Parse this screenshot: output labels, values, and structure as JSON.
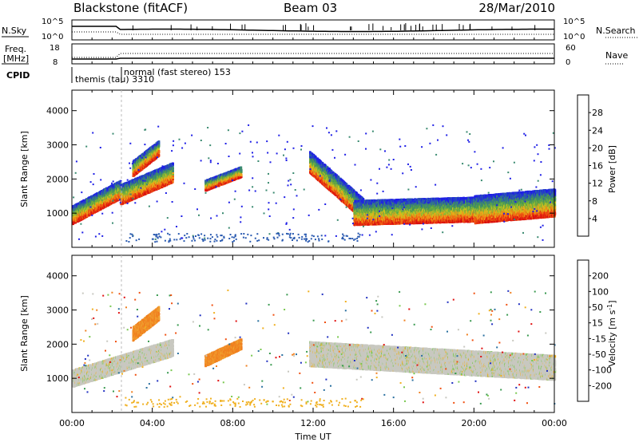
{
  "header": {
    "station": "Blackstone (fitACF)",
    "beam": "Beam 03",
    "date": "28/Mar/2010"
  },
  "status": {
    "nsky_label": "N.Sky",
    "nsearch_label": "N.Search",
    "nsky_ticks": [
      "10^5",
      "10^0"
    ],
    "nsearch_ticks": [
      "10^5",
      "10^0"
    ],
    "freq_label_1": "Freq.",
    "freq_label_2": "[MHz]",
    "freq_ticks": [
      "18",
      "8"
    ],
    "nave_label": "Nave",
    "nave_ticks": [
      "60",
      "0"
    ],
    "cpid_label": "CPID",
    "cpid_entries": [
      {
        "time": 0.1,
        "text": "themis (tau) 3310"
      },
      {
        "time": 2.4,
        "text": "normal (fast stereo) 153"
      }
    ]
  },
  "x_axis": {
    "label": "Time UT",
    "range_hours": [
      0,
      24
    ],
    "tick_labels": [
      "00:00",
      "04:00",
      "08:00",
      "12:00",
      "16:00",
      "20:00",
      "00:00"
    ],
    "tick_hours": [
      0,
      4,
      8,
      12,
      16,
      20,
      24
    ]
  },
  "chart_data": [
    {
      "type": "heatmap",
      "panel": "power",
      "ylabel": "Slant Range [km]",
      "ylim": [
        0,
        4600
      ],
      "y_ticks": [
        1000,
        2000,
        3000,
        4000
      ],
      "colorbar": {
        "label": "Power [dB]",
        "range": [
          0,
          32
        ],
        "ticks": [
          "4",
          "8",
          "12",
          "16",
          "20",
          "24",
          "28"
        ],
        "colors": [
          "#1f1fe6",
          "#2a5ab0",
          "#3a8a70",
          "#4f9a4a",
          "#74b43c",
          "#c8c51e",
          "#f0a21a",
          "#f06a12",
          "#e82a10",
          "#d81010"
        ]
      },
      "features": [
        {
          "t0": 0.0,
          "t1": 2.4,
          "r_start": 950,
          "r_end": 1700,
          "thick": 550
        },
        {
          "t0": 2.4,
          "t1": 5.0,
          "r_start": 1550,
          "r_end": 2200,
          "thick": 600
        },
        {
          "t0": 3.0,
          "t1": 4.3,
          "r_start": 2300,
          "r_end": 2900,
          "thick": 450
        },
        {
          "t0": 6.6,
          "t1": 8.4,
          "r_start": 1800,
          "r_end": 2200,
          "thick": 300
        },
        {
          "t0": 11.8,
          "t1": 14.5,
          "r_start": 2500,
          "r_end": 1100,
          "thick": 650
        },
        {
          "t0": 14.0,
          "t1": 20.0,
          "r_start": 1000,
          "r_end": 1100,
          "thick": 700
        },
        {
          "t0": 20.0,
          "t1": 24.0,
          "r_start": 1100,
          "r_end": 1300,
          "thick": 800
        }
      ]
    },
    {
      "type": "heatmap",
      "panel": "velocity",
      "ylabel": "Slant Range [km]",
      "ylim": [
        0,
        4600
      ],
      "y_ticks": [
        1000,
        2000,
        3000,
        4000
      ],
      "colorbar": {
        "label": "Velocity [m s^-1]",
        "label_main": "Velocity [m s",
        "label_exp": "-1",
        "label_close": "]",
        "range": [
          -250,
          250
        ],
        "ticks": [
          "200",
          "100",
          "50",
          "15",
          "-15",
          "-50",
          "-100",
          "-200"
        ],
        "colors": [
          "#2030c0",
          "#2a70a0",
          "#3a9a50",
          "#7ac850",
          "#c8c8c0",
          "#f0b020",
          "#f08020",
          "#f05010",
          "#e01010"
        ]
      },
      "features": [
        {
          "t0": 0.0,
          "t1": 5.0,
          "r_start": 1000,
          "r_end": 1900,
          "thick": 500,
          "kind": "ground"
        },
        {
          "t0": 3.0,
          "t1": 4.3,
          "r_start": 2300,
          "r_end": 2900,
          "thick": 400,
          "kind": "orange"
        },
        {
          "t0": 6.6,
          "t1": 8.4,
          "r_start": 1500,
          "r_end": 2000,
          "thick": 300,
          "kind": "orange"
        },
        {
          "t0": 11.8,
          "t1": 24.0,
          "r_start": 1700,
          "r_end": 1300,
          "thick": 700,
          "kind": "ground"
        }
      ]
    }
  ]
}
